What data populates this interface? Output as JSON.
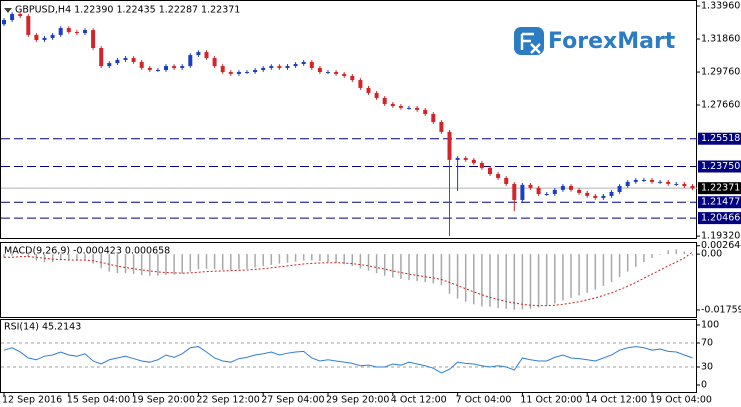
{
  "chart_data": [
    {
      "type": "candlestick",
      "title": "GBPUSD,H4  1.22390 1.22435 1.22287 1.22371",
      "watermark": "ForexMart",
      "categories": [
        "12 Sep 2016",
        null,
        null,
        null,
        null,
        null,
        null,
        null,
        "15 Sep 04:00",
        null,
        null,
        null,
        null,
        null,
        null,
        null,
        "19 Sep 20:00",
        null,
        null,
        null,
        null,
        null,
        null,
        null,
        "22 Sep 12:00",
        null,
        null,
        null,
        null,
        null,
        null,
        null,
        "27 Sep 04:00",
        null,
        null,
        null,
        null,
        null,
        null,
        null,
        "29 Sep 20:00",
        null,
        null,
        null,
        null,
        null,
        null,
        null,
        "4 Oct 12:00",
        null,
        null,
        null,
        null,
        null,
        null,
        null,
        "7 Oct 04:00",
        null,
        null,
        null,
        null,
        null,
        null,
        null,
        "11 Oct 20:00",
        null,
        null,
        null,
        null,
        null,
        null,
        null,
        "14 Oct 12:00",
        null,
        null,
        null,
        null,
        null,
        null,
        null,
        "19 Oct 04:00",
        null,
        null,
        null,
        null,
        null
      ],
      "open": [
        1.328,
        1.3307,
        1.3345,
        1.3332,
        1.3212,
        1.318,
        1.3193,
        1.3212,
        1.3256,
        1.3231,
        1.3224,
        1.3243,
        1.3129,
        1.3014,
        1.3033,
        1.3053,
        1.3065,
        1.304,
        1.3002,
        1.2989,
        1.2989,
        1.3014,
        1.3002,
        1.3014,
        1.3084,
        1.3103,
        1.3065,
        1.3014,
        1.2976,
        1.2964,
        1.2976,
        1.2976,
        1.2989,
        1.3002,
        1.3014,
        1.3002,
        1.3014,
        1.3027,
        1.304,
        1.3002,
        1.2976,
        1.2976,
        1.2964,
        1.2951,
        1.2925,
        1.2875,
        1.2843,
        1.2811,
        1.2773,
        1.276,
        1.2748,
        1.2748,
        1.2735,
        1.2709,
        1.2658,
        1.2595,
        1.2417,
        1.2429,
        1.2417,
        1.2397,
        1.2366,
        1.2327,
        1.2302,
        1.2264,
        1.2162,
        1.2258,
        1.2239,
        1.22,
        1.22,
        1.2226,
        1.2251,
        1.2226,
        1.2207,
        1.2188,
        1.2175,
        1.2188,
        1.2213,
        1.2251,
        1.2277,
        1.2289,
        1.2289,
        1.2277,
        1.2277,
        1.2264,
        1.2264,
        1.2251
      ],
      "high": [
        1.3319,
        1.3357,
        1.3357,
        1.3344,
        1.3224,
        1.3205,
        1.3224,
        1.3268,
        1.3268,
        1.3243,
        1.3255,
        1.3255,
        1.3141,
        1.3045,
        1.3065,
        1.3077,
        1.3077,
        1.3052,
        1.3014,
        1.3001,
        1.3026,
        1.3026,
        1.3026,
        1.3096,
        1.3115,
        1.3115,
        1.3077,
        1.3026,
        1.2988,
        1.2988,
        1.2988,
        1.3001,
        1.3014,
        1.3026,
        1.3026,
        1.3026,
        1.3039,
        1.3052,
        1.3052,
        1.3014,
        1.2988,
        1.2988,
        1.2976,
        1.2963,
        1.2937,
        1.2887,
        1.2855,
        1.2823,
        1.2785,
        1.2772,
        1.276,
        1.276,
        1.2747,
        1.2721,
        1.267,
        1.2607,
        1.2441,
        1.2441,
        1.2429,
        1.2409,
        1.2378,
        1.2339,
        1.2314,
        1.2276,
        1.227,
        1.227,
        1.2251,
        1.2212,
        1.2238,
        1.2263,
        1.2263,
        1.2238,
        1.2219,
        1.22,
        1.22,
        1.2225,
        1.2263,
        1.2289,
        1.2301,
        1.2301,
        1.2301,
        1.2289,
        1.2289,
        1.2276,
        1.2276,
        1.2263
      ],
      "low": [
        1.3268,
        1.3295,
        1.332,
        1.32,
        1.3168,
        1.3168,
        1.3181,
        1.32,
        1.3219,
        1.3212,
        1.3212,
        1.3117,
        1.3002,
        1.3002,
        1.3021,
        1.3041,
        1.3028,
        1.299,
        1.2977,
        1.2977,
        1.2977,
        1.299,
        1.299,
        1.3002,
        1.3072,
        1.3053,
        1.3002,
        1.2964,
        1.2952,
        1.2952,
        1.2964,
        1.2964,
        1.2977,
        1.299,
        1.299,
        1.299,
        1.3002,
        1.3015,
        1.299,
        1.2964,
        1.2964,
        1.2952,
        1.2939,
        1.2913,
        1.2863,
        1.2831,
        1.2799,
        1.2761,
        1.2748,
        1.2736,
        1.2736,
        1.2723,
        1.2697,
        1.2646,
        1.2583,
        1.1932,
        1.222,
        1.2405,
        1.2385,
        1.2354,
        1.2315,
        1.229,
        1.2252,
        1.209,
        1.215,
        1.2227,
        1.2188,
        1.2188,
        1.2188,
        1.2214,
        1.2214,
        1.2195,
        1.2176,
        1.2163,
        1.2163,
        1.2176,
        1.2201,
        1.2239,
        1.2265,
        1.2277,
        1.2265,
        1.2265,
        1.2252,
        1.2252,
        1.2239,
        1.2225
      ],
      "close": [
        1.3307,
        1.3345,
        1.3332,
        1.3212,
        1.318,
        1.3193,
        1.3212,
        1.3256,
        1.3231,
        1.3224,
        1.3243,
        1.3129,
        1.3014,
        1.3033,
        1.3053,
        1.3065,
        1.304,
        1.3002,
        1.2989,
        1.2989,
        1.3014,
        1.3002,
        1.3014,
        1.3084,
        1.3103,
        1.3065,
        1.3014,
        1.2976,
        1.2964,
        1.2976,
        1.2976,
        1.2989,
        1.3002,
        1.3014,
        1.3002,
        1.3014,
        1.3027,
        1.304,
        1.3002,
        1.2976,
        1.2976,
        1.2964,
        1.2951,
        1.2925,
        1.2875,
        1.2843,
        1.2811,
        1.2773,
        1.276,
        1.2748,
        1.2748,
        1.2735,
        1.2709,
        1.2658,
        1.2595,
        1.2417,
        1.2429,
        1.2417,
        1.2397,
        1.2366,
        1.2327,
        1.2302,
        1.2264,
        1.2162,
        1.2258,
        1.2239,
        1.22,
        1.22,
        1.2226,
        1.2251,
        1.2226,
        1.2207,
        1.2188,
        1.2175,
        1.2188,
        1.2213,
        1.2251,
        1.2277,
        1.2289,
        1.2289,
        1.2277,
        1.2277,
        1.2264,
        1.2264,
        1.2251,
        1.2237
      ],
      "up_color": "#1b3fc4",
      "down_color": "#d3242a",
      "ylim": [
        1.192,
        1.3428
      ],
      "yticks": [
        {
          "value": 1.3396,
          "label": "1.33960"
        },
        {
          "value": 1.3186,
          "label": "1.31860"
        },
        {
          "value": 1.2976,
          "label": "1.29760"
        },
        {
          "value": 1.2766,
          "label": "1.27660"
        },
        {
          "value": 1.1932,
          "label": "1.19320"
        }
      ],
      "levels": [
        {
          "value": 1.25518,
          "label": "1.25518"
        },
        {
          "value": 1.2375,
          "label": "1.23750"
        },
        {
          "value": 1.21477,
          "label": "1.21477"
        },
        {
          "value": 1.20466,
          "label": "1.20466"
        }
      ],
      "level_color": "#000080",
      "last": {
        "value": 1.22371,
        "label": "1.22371"
      }
    },
    {
      "type": "macd",
      "title": "MACD(9,26,9) -0.000423 0.000658",
      "histogram": {
        "color": "#a8a8a8",
        "values": [
          -0.001,
          -0.0005,
          0,
          -0.001,
          -0.002,
          -0.0025,
          -0.0025,
          -0.002,
          -0.002,
          -0.002,
          -0.002,
          -0.003,
          -0.0045,
          -0.0055,
          -0.006,
          -0.006,
          -0.0062,
          -0.0066,
          -0.0068,
          -0.0068,
          -0.0066,
          -0.0065,
          -0.0062,
          -0.0055,
          -0.0048,
          -0.0046,
          -0.0048,
          -0.005,
          -0.005,
          -0.0048,
          -0.0046,
          -0.0042,
          -0.0038,
          -0.0034,
          -0.003,
          -0.0027,
          -0.0024,
          -0.002,
          -0.002,
          -0.0022,
          -0.0025,
          -0.0028,
          -0.0032,
          -0.0038,
          -0.0045,
          -0.0052,
          -0.006,
          -0.0068,
          -0.0074,
          -0.0078,
          -0.0082,
          -0.0085,
          -0.0088,
          -0.0092,
          -0.0098,
          -0.0125,
          -0.014,
          -0.015,
          -0.0158,
          -0.0165,
          -0.0166,
          -0.017,
          -0.0172,
          -0.0175,
          -0.0174,
          -0.0172,
          -0.0168,
          -0.0162,
          -0.0155,
          -0.0146,
          -0.0138,
          -0.013,
          -0.0122,
          -0.0112,
          -0.01,
          -0.0088,
          -0.0072,
          -0.0055,
          -0.004,
          -0.0025,
          -0.0012,
          -0.0002,
          0.0012,
          0.0015,
          0.0008,
          -0.000423
        ]
      },
      "signal": {
        "color": "#d02020",
        "values": [
          -0.001,
          -0.001,
          -0.0008,
          -0.0008,
          -0.001,
          -0.0013,
          -0.0016,
          -0.0017,
          -0.0018,
          -0.0019,
          -0.0019,
          -0.0021,
          -0.0026,
          -0.0032,
          -0.0038,
          -0.0042,
          -0.0046,
          -0.005,
          -0.0053,
          -0.0056,
          -0.0058,
          -0.0059,
          -0.006,
          -0.0059,
          -0.0057,
          -0.0055,
          -0.0054,
          -0.0053,
          -0.0052,
          -0.0051,
          -0.005,
          -0.0048,
          -0.0046,
          -0.0043,
          -0.004,
          -0.0037,
          -0.0034,
          -0.0031,
          -0.0029,
          -0.0028,
          -0.0027,
          -0.0027,
          -0.0028,
          -0.003,
          -0.0033,
          -0.0037,
          -0.0042,
          -0.0047,
          -0.0053,
          -0.0058,
          -0.0063,
          -0.0067,
          -0.0071,
          -0.0075,
          -0.008,
          -0.0089,
          -0.0099,
          -0.0109,
          -0.0119,
          -0.0128,
          -0.0136,
          -0.0143,
          -0.0149,
          -0.0154,
          -0.0158,
          -0.0161,
          -0.0162,
          -0.0162,
          -0.0161,
          -0.0158,
          -0.0154,
          -0.015,
          -0.0144,
          -0.0138,
          -0.013,
          -0.0122,
          -0.0112,
          -0.0101,
          -0.0089,
          -0.0076,
          -0.0063,
          -0.005,
          -0.0037,
          -0.0025,
          -0.0012,
          0.000658
        ]
      },
      "ylim": [
        -0.0198,
        0.0035
      ],
      "yticks": [
        {
          "value": 0.002644,
          "label": "0.002644"
        },
        {
          "value": 0,
          "label": "0.00"
        },
        {
          "value": -0.017591,
          "label": "-0.017591"
        }
      ]
    },
    {
      "type": "line",
      "title": "RSI(14) 45.2143",
      "color": "#2f7fd6",
      "values": [
        58,
        62,
        55,
        45,
        42,
        48,
        50,
        55,
        50,
        48,
        52,
        40,
        35,
        42,
        45,
        48,
        44,
        40,
        38,
        42,
        50,
        46,
        52,
        62,
        64,
        55,
        45,
        40,
        38,
        44,
        46,
        50,
        52,
        55,
        50,
        53,
        55,
        56,
        45,
        40,
        42,
        40,
        38,
        36,
        32,
        33,
        30,
        30,
        35,
        33,
        38,
        35,
        32,
        28,
        20,
        26,
        38,
        36,
        35,
        32,
        30,
        32,
        30,
        25,
        45,
        42,
        40,
        40,
        46,
        50,
        45,
        44,
        42,
        40,
        45,
        50,
        58,
        62,
        64,
        62,
        58,
        60,
        56,
        55,
        50,
        45.2143
      ],
      "ylim": [
        -11.7,
        108.3
      ],
      "yticks": [
        100,
        70,
        30,
        0
      ],
      "levels": [
        70,
        30
      ]
    }
  ]
}
